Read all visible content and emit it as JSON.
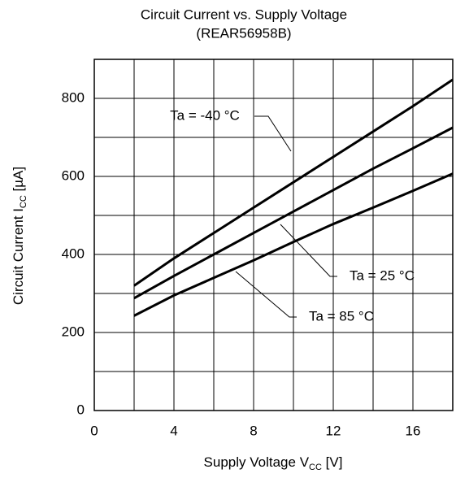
{
  "chart_data": {
    "type": "line",
    "title": "Circuit Current vs. Supply Voltage",
    "subtitle": "(REAR56958B)",
    "xlabel": {
      "text": "Supply Voltage V",
      "sub": "CC",
      "unit": " [V]"
    },
    "ylabel": {
      "text": "Circuit Current I",
      "sub": "CC",
      "unit": " [µA]"
    },
    "x": [
      2,
      4,
      6,
      8,
      10,
      12,
      14,
      16,
      18
    ],
    "series": [
      {
        "name": "Ta = -40 °C",
        "color": "#000000",
        "values": [
          320,
          390,
          455,
          520,
          585,
          650,
          715,
          780,
          848
        ]
      },
      {
        "name": "Ta = 25 °C",
        "color": "#000000",
        "values": [
          288,
          345,
          400,
          455,
          510,
          565,
          620,
          672,
          725
        ]
      },
      {
        "name": "Ta = 85 °C",
        "color": "#000000",
        "values": [
          243,
          295,
          340,
          385,
          432,
          478,
          520,
          563,
          607
        ]
      }
    ],
    "xlim": [
      0,
      18
    ],
    "ylim": [
      0,
      900
    ],
    "xticks": [
      0,
      4,
      8,
      12,
      16
    ],
    "yticks": [
      0,
      200,
      400,
      600,
      800
    ],
    "xminorticks": [
      2,
      6,
      10,
      14
    ],
    "yminorticks": [
      100,
      300,
      500,
      700
    ],
    "grid": true
  }
}
